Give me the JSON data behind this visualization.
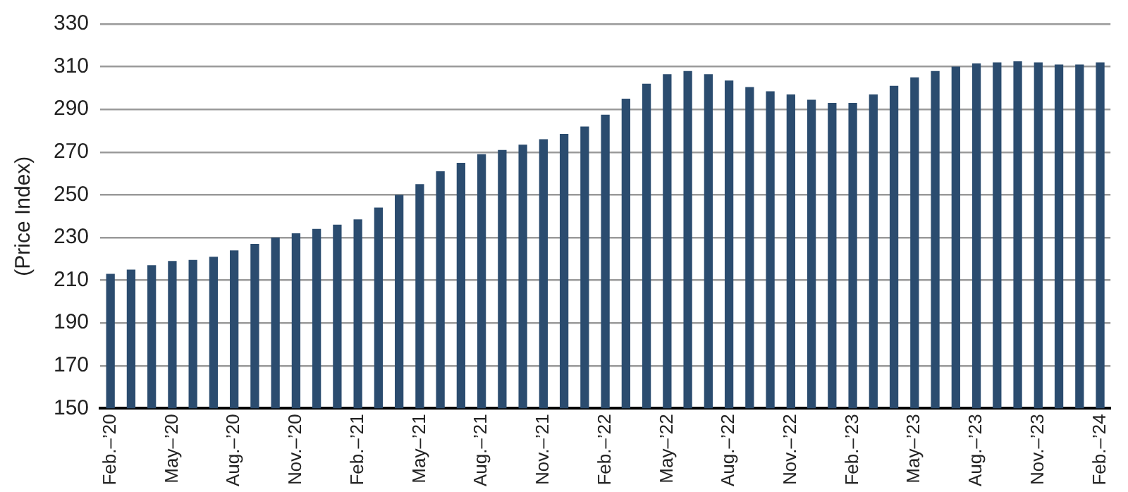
{
  "chart_data": {
    "type": "bar",
    "ylabel": "(Price Index)",
    "categories": [
      "Feb.–’20",
      null,
      null,
      "May–’20",
      null,
      null,
      "Aug.–’20",
      null,
      null,
      "Nov.–’20",
      null,
      null,
      "Feb.–’21",
      null,
      null,
      "May–’21",
      null,
      null,
      "Aug.–’21",
      null,
      null,
      "Nov.–’21",
      null,
      null,
      "Feb.–’22",
      null,
      null,
      "May–’22",
      null,
      null,
      "Aug.–’22",
      null,
      null,
      "Nov.–’22",
      null,
      null,
      "Feb.–’23",
      null,
      null,
      "May–’23",
      null,
      null,
      "Aug.–’23",
      null,
      null,
      "Nov.–’23",
      null,
      null,
      "Feb.–’24"
    ],
    "values": [
      213,
      215,
      217,
      219,
      219.5,
      221,
      224,
      227,
      230,
      232,
      234,
      236,
      238.5,
      244,
      250,
      255,
      261,
      265,
      269,
      271,
      273.5,
      276,
      278.5,
      282,
      287.5,
      295,
      302,
      306.5,
      308,
      306.5,
      303.5,
      300.5,
      298.5,
      297,
      294.5,
      293,
      293,
      297,
      301,
      305,
      308,
      310,
      311.5,
      312,
      312.5,
      312,
      311,
      311,
      312
    ],
    "color": "#2b4c6f",
    "ylim": [
      150,
      330
    ],
    "yticks": [
      150,
      170,
      190,
      210,
      230,
      250,
      270,
      290,
      310,
      330
    ],
    "grid": "y"
  }
}
